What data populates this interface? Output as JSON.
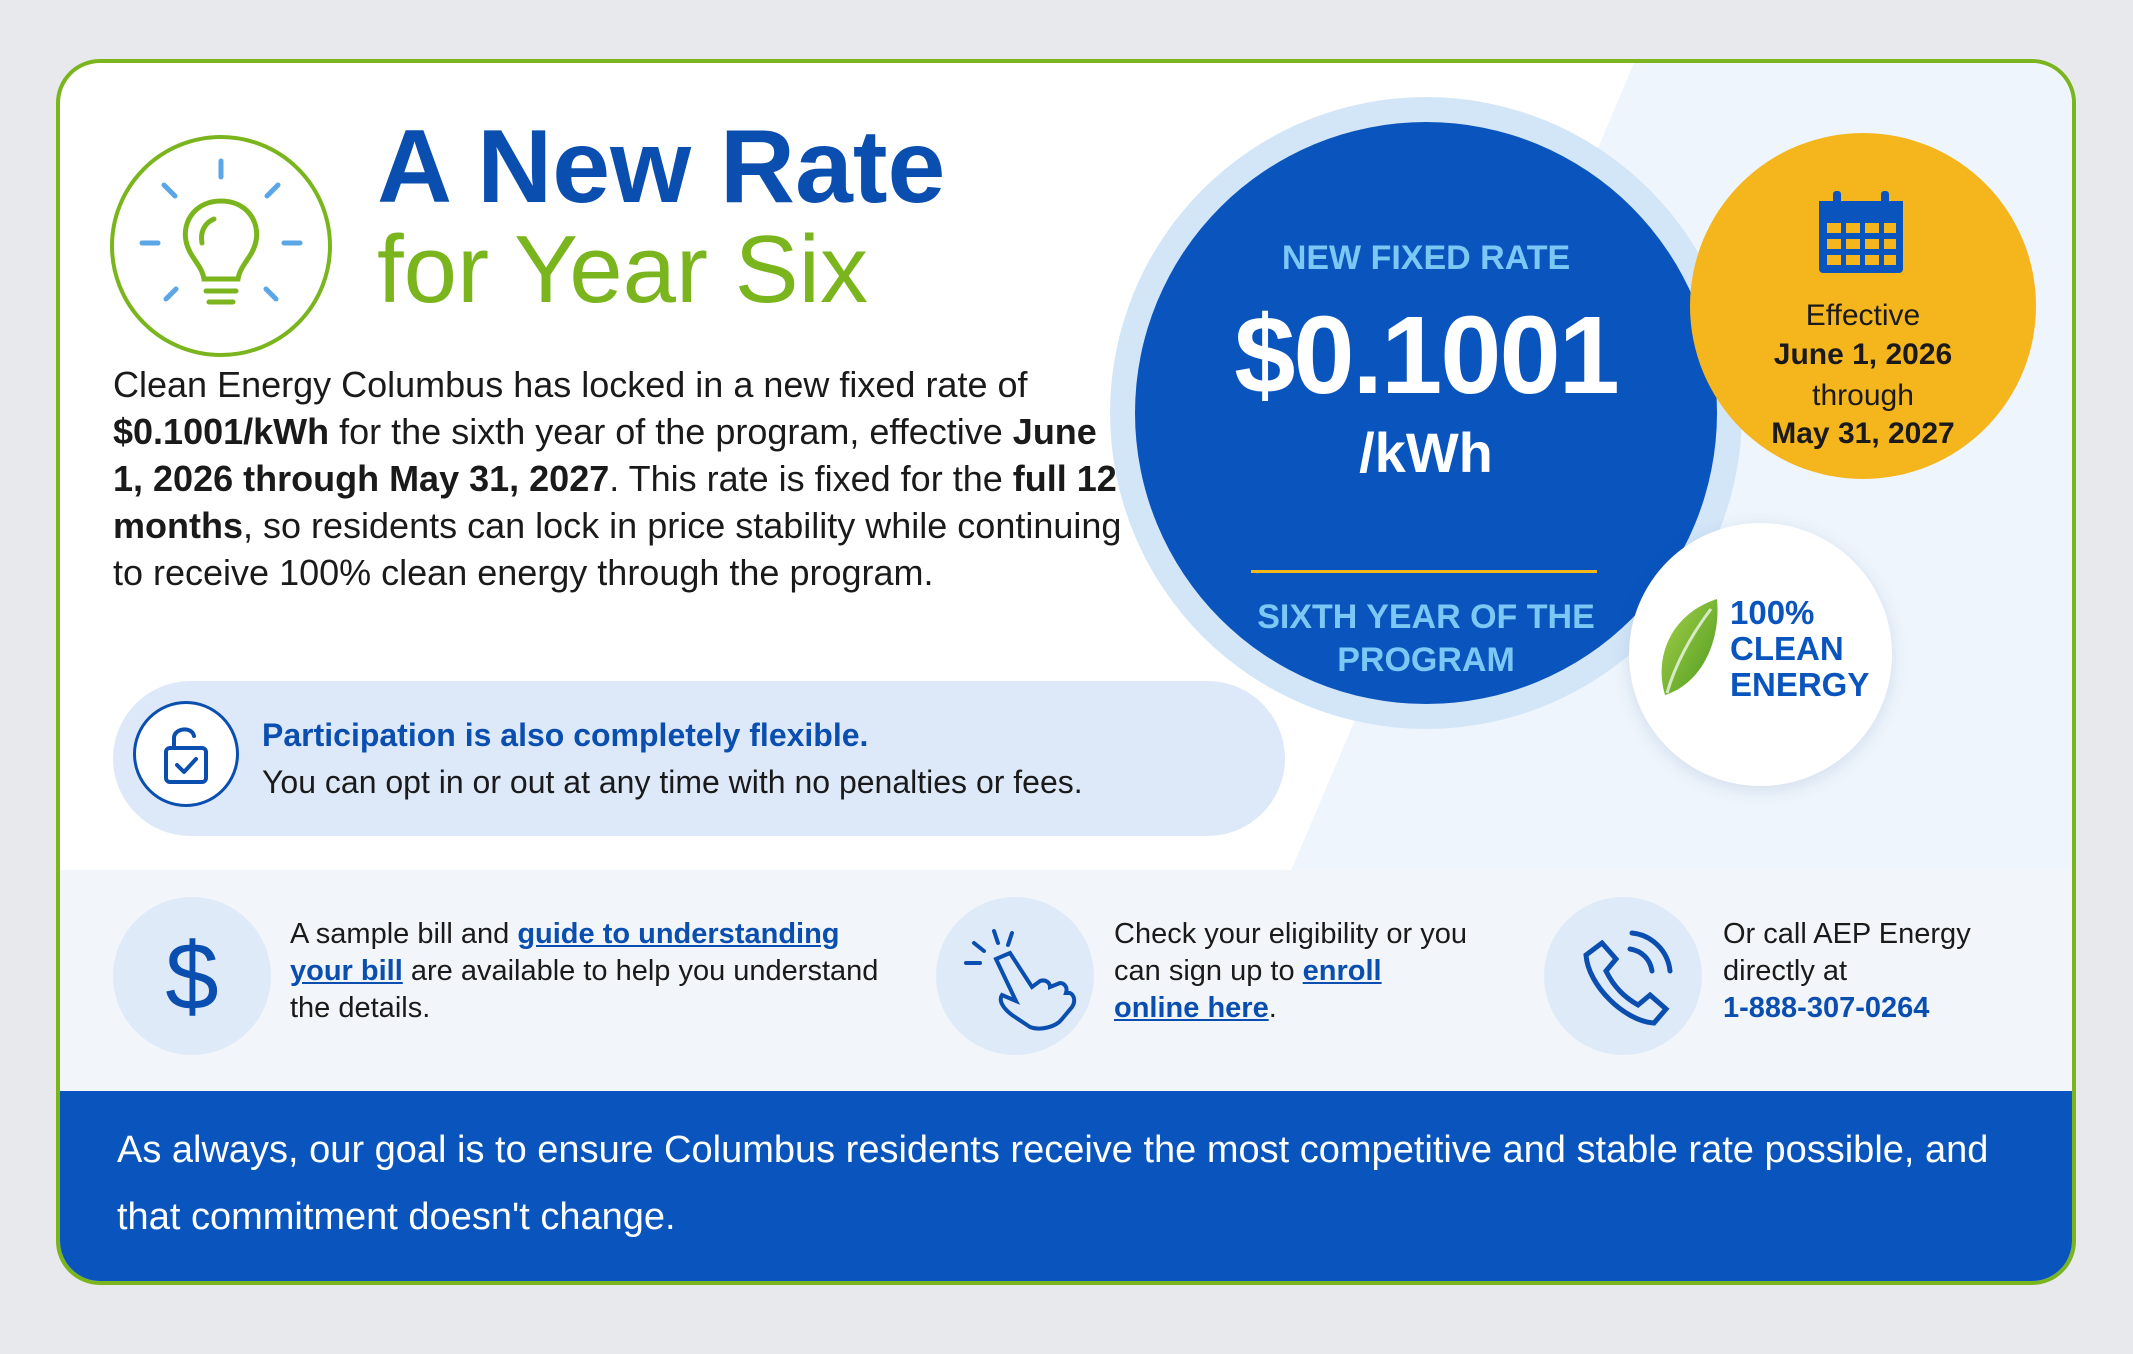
{
  "title": {
    "line1": "A New Rate",
    "line2": "for Year Six"
  },
  "intro": {
    "p1": "Clean Energy Columbus has locked in a new fixed rate of ",
    "rate": "$0.1001/kWh",
    "p2": " for the sixth year of the program, effective ",
    "dates": "June 1, 2026 through May 31, 2027",
    "p3": ". This rate is fixed for the ",
    "months": "full 12 months",
    "p4": ", so residents can lock in price stability while continuing to receive 100% clean energy through the program."
  },
  "flex": {
    "heading": "Participation is also completely flexible.",
    "text": "You can opt in or out at any time with no penalties or fees."
  },
  "rate_badge": {
    "label": "NEW FIXED RATE",
    "value": "$0.1001",
    "unit": "/kWh",
    "footer": "SIXTH YEAR OF THE PROGRAM"
  },
  "effective": {
    "label": "Effective",
    "start": "June 1, 2026",
    "connector": "through",
    "end": "May 31, 2027"
  },
  "clean_badge": {
    "line1": "100%",
    "line2": "CLEAN",
    "line3": "ENERGY"
  },
  "info": {
    "bill": {
      "pre": "A sample bill and ",
      "link": "guide to understanding your bill",
      "post": " are available to help you understand the details."
    },
    "enroll": {
      "pre": "Check your eligibility or you can sign up to ",
      "link": "enroll online here",
      "post": "."
    },
    "call": {
      "pre": "Or call AEP Energy directly at",
      "phone": "1-888-307-0264"
    }
  },
  "footer": {
    "text": "As always, our goal is to ensure Columbus residents receive the most competitive and stable rate possible, and that commitment doesn't change."
  },
  "colors": {
    "brand_blue": "#0a54be",
    "brand_green": "#7ab51d",
    "accent_yellow": "#f5b51d",
    "light_blue": "#7cc8f5"
  },
  "icons": [
    "lightbulb-icon",
    "lock-icon",
    "calendar-icon",
    "leaf-icon",
    "dollar-icon",
    "pointer-hand-icon",
    "phone-icon"
  ]
}
